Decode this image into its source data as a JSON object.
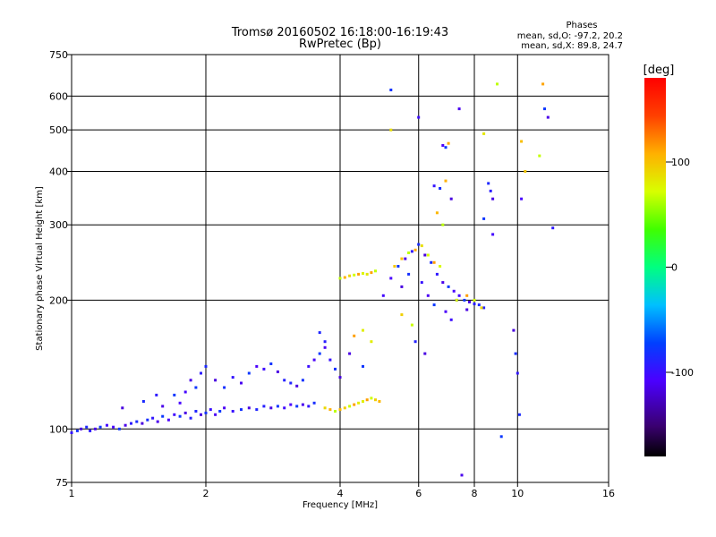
{
  "chart_data": {
    "type": "scatter",
    "title": "Tromsø 20160502 16:18:00-16:19:43",
    "subtitle": "RwPretec (Bp)",
    "xlabel": "Frequency [MHz]",
    "ylabel": "Stationary phase Virtual Height [km]",
    "x_scale": "log",
    "y_scale": "log",
    "xlim": [
      1,
      16
    ],
    "ylim": [
      75,
      750
    ],
    "grid": true,
    "x_ticks": [
      1,
      2,
      4,
      6,
      8,
      10,
      16
    ],
    "x_tick_labels": [
      "1",
      "2",
      "4",
      "6",
      "8",
      "10",
      "16"
    ],
    "y_ticks": [
      75,
      100,
      200,
      300,
      400,
      500,
      600,
      750
    ],
    "y_tick_labels": [
      "75",
      "100",
      "200",
      "300",
      "400",
      "500",
      "600",
      "750"
    ],
    "stats": {
      "header": "Phases",
      "o_mode": "mean, sd,O: -97.2, 20.2",
      "x_mode": "mean, sd,X:  89.8, 24.7"
    },
    "colorbar": {
      "label": "[deg]",
      "range": [
        -180,
        180
      ],
      "ticks": [
        100,
        0,
        -100
      ],
      "tick_labels": [
        "100",
        "0",
        "-100"
      ]
    },
    "series": [
      {
        "mode": "O",
        "phase_mean": -97.2,
        "phase_sd": 20.2,
        "points": [
          [
            1.0,
            98
          ],
          [
            1.03,
            99
          ],
          [
            1.05,
            100
          ],
          [
            1.08,
            101
          ],
          [
            1.1,
            99
          ],
          [
            1.13,
            100
          ],
          [
            1.16,
            101
          ],
          [
            1.2,
            102
          ],
          [
            1.24,
            101
          ],
          [
            1.28,
            100
          ],
          [
            1.32,
            102
          ],
          [
            1.36,
            103
          ],
          [
            1.4,
            104
          ],
          [
            1.44,
            103
          ],
          [
            1.48,
            105
          ],
          [
            1.52,
            106
          ],
          [
            1.56,
            104
          ],
          [
            1.6,
            107
          ],
          [
            1.65,
            105
          ],
          [
            1.7,
            108
          ],
          [
            1.75,
            107
          ],
          [
            1.8,
            109
          ],
          [
            1.85,
            106
          ],
          [
            1.9,
            110
          ],
          [
            1.95,
            108
          ],
          [
            2.0,
            109
          ],
          [
            2.05,
            111
          ],
          [
            2.1,
            108
          ],
          [
            2.15,
            110
          ],
          [
            2.2,
            112
          ],
          [
            2.3,
            110
          ],
          [
            2.4,
            111
          ],
          [
            2.5,
            112
          ],
          [
            2.6,
            111
          ],
          [
            2.7,
            113
          ],
          [
            2.8,
            112
          ],
          [
            2.9,
            113
          ],
          [
            3.0,
            112
          ],
          [
            3.1,
            114
          ],
          [
            3.2,
            113
          ],
          [
            3.3,
            114
          ],
          [
            3.4,
            113
          ],
          [
            3.5,
            115
          ],
          [
            1.3,
            112
          ],
          [
            1.45,
            116
          ],
          [
            1.55,
            120
          ],
          [
            1.6,
            113
          ],
          [
            1.7,
            120
          ],
          [
            1.75,
            115
          ],
          [
            1.8,
            122
          ],
          [
            1.9,
            125
          ],
          [
            1.85,
            130
          ],
          [
            1.95,
            135
          ],
          [
            2.0,
            140
          ],
          [
            2.1,
            130
          ],
          [
            2.2,
            125
          ],
          [
            2.3,
            132
          ],
          [
            2.4,
            128
          ],
          [
            2.5,
            135
          ],
          [
            2.6,
            140
          ],
          [
            2.7,
            138
          ],
          [
            2.8,
            142
          ],
          [
            2.9,
            136
          ],
          [
            3.0,
            130
          ],
          [
            3.1,
            128
          ],
          [
            3.2,
            126
          ],
          [
            3.3,
            130
          ],
          [
            3.4,
            140
          ],
          [
            3.5,
            145
          ],
          [
            3.6,
            150
          ],
          [
            3.7,
            155
          ],
          [
            3.8,
            145
          ],
          [
            3.9,
            138
          ],
          [
            4.0,
            132
          ],
          [
            3.6,
            168
          ],
          [
            3.7,
            160
          ],
          [
            4.2,
            150
          ],
          [
            4.5,
            140
          ],
          [
            5.0,
            205
          ],
          [
            5.2,
            225
          ],
          [
            5.4,
            240
          ],
          [
            5.6,
            250
          ],
          [
            5.8,
            260
          ],
          [
            6.0,
            270
          ],
          [
            6.2,
            255
          ],
          [
            6.4,
            245
          ],
          [
            6.6,
            230
          ],
          [
            6.8,
            220
          ],
          [
            7.0,
            215
          ],
          [
            7.2,
            210
          ],
          [
            7.4,
            205
          ],
          [
            7.6,
            200
          ],
          [
            7.8,
            198
          ],
          [
            8.0,
            196
          ],
          [
            8.2,
            195
          ],
          [
            5.5,
            215
          ],
          [
            5.7,
            230
          ],
          [
            6.1,
            220
          ],
          [
            6.3,
            205
          ],
          [
            6.5,
            195
          ],
          [
            6.9,
            188
          ],
          [
            7.1,
            180
          ],
          [
            7.3,
            200
          ],
          [
            7.7,
            190
          ],
          [
            8.4,
            192
          ],
          [
            5.9,
            160
          ],
          [
            6.2,
            150
          ],
          [
            5.2,
            620
          ],
          [
            6.0,
            535
          ],
          [
            6.8,
            460
          ],
          [
            6.9,
            455
          ],
          [
            7.4,
            560
          ],
          [
            6.5,
            370
          ],
          [
            6.7,
            365
          ],
          [
            7.1,
            345
          ],
          [
            8.6,
            375
          ],
          [
            8.7,
            360
          ],
          [
            8.8,
            345
          ],
          [
            8.4,
            310
          ],
          [
            8.8,
            285
          ],
          [
            10.2,
            345
          ],
          [
            11.5,
            560
          ],
          [
            11.7,
            535
          ],
          [
            12.0,
            295
          ],
          [
            10.1,
            108
          ],
          [
            9.8,
            170
          ],
          [
            9.9,
            150
          ],
          [
            10.0,
            135
          ],
          [
            7.5,
            78
          ],
          [
            9.2,
            96
          ]
        ]
      },
      {
        "mode": "X",
        "phase_mean": 89.8,
        "phase_sd": 24.7,
        "points": [
          [
            3.7,
            112
          ],
          [
            3.8,
            111
          ],
          [
            3.9,
            110
          ],
          [
            4.0,
            111
          ],
          [
            4.1,
            112
          ],
          [
            4.2,
            113
          ],
          [
            4.3,
            114
          ],
          [
            4.4,
            115
          ],
          [
            4.5,
            116
          ],
          [
            4.6,
            117
          ],
          [
            4.7,
            118
          ],
          [
            4.8,
            117
          ],
          [
            4.9,
            116
          ],
          [
            4.0,
            225
          ],
          [
            4.1,
            226
          ],
          [
            4.2,
            228
          ],
          [
            4.3,
            229
          ],
          [
            4.4,
            230
          ],
          [
            4.5,
            231
          ],
          [
            4.6,
            230
          ],
          [
            4.7,
            232
          ],
          [
            4.8,
            234
          ],
          [
            5.3,
            240
          ],
          [
            5.5,
            250
          ],
          [
            5.7,
            258
          ],
          [
            5.9,
            262
          ],
          [
            6.1,
            268
          ],
          [
            6.3,
            255
          ],
          [
            6.5,
            245
          ],
          [
            6.7,
            240
          ],
          [
            5.2,
            500
          ],
          [
            7.0,
            465
          ],
          [
            9.0,
            640
          ],
          [
            10.2,
            470
          ],
          [
            10.4,
            400
          ],
          [
            11.2,
            435
          ],
          [
            11.4,
            640
          ],
          [
            8.4,
            490
          ],
          [
            7.3,
            200
          ],
          [
            7.7,
            205
          ],
          [
            8.0,
            200
          ],
          [
            8.3,
            192
          ],
          [
            6.9,
            380
          ],
          [
            6.8,
            300
          ],
          [
            6.6,
            320
          ],
          [
            5.5,
            185
          ],
          [
            5.8,
            175
          ],
          [
            4.3,
            165
          ],
          [
            4.5,
            170
          ],
          [
            4.7,
            160
          ]
        ]
      }
    ]
  }
}
